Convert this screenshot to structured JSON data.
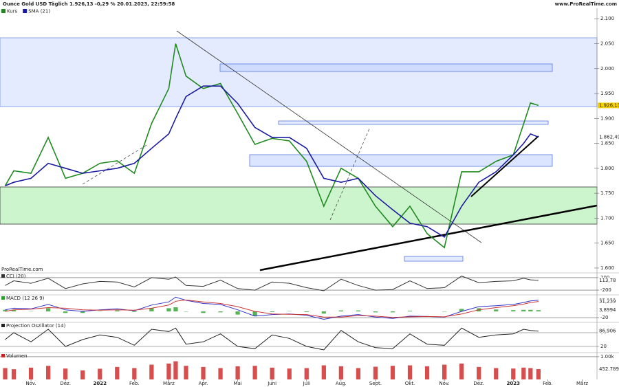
{
  "chart_data": [
    {
      "type": "line",
      "title": "Ounce Gold USD Täglich 1.926,13 -0,29 % 20.01.2023, 22:59:58",
      "source": "www.ProRealTime.com",
      "watermark": "ProRealTime.com",
      "x": [
        -0.75,
        -0.5,
        0,
        0.5,
        1,
        1.5,
        2,
        2.5,
        3,
        3.5,
        4,
        4.2,
        4.5,
        5,
        5.5,
        6,
        6.5,
        7,
        7.5,
        8,
        8.5,
        9,
        9.5,
        10,
        10.5,
        11,
        11.5,
        12,
        12.5,
        13,
        13.5,
        14,
        14.3,
        14.5,
        14.73
      ],
      "xlim": [
        -0.9,
        16.43
      ],
      "ylim": [
        1593,
        2121
      ],
      "yticks": [
        {
          "value": 2100,
          "label": "2.100"
        },
        {
          "value": 2050,
          "label": "2.050"
        },
        {
          "value": 2000,
          "label": "2.000"
        },
        {
          "value": 1950,
          "label": "1.950"
        },
        {
          "value": 1900,
          "label": "1.900"
        },
        {
          "value": 1850,
          "label": "1.850"
        },
        {
          "value": 1800,
          "label": "1.800"
        },
        {
          "value": 1750,
          "label": "1.750"
        },
        {
          "value": 1700,
          "label": "1.700"
        },
        {
          "value": 1650,
          "label": "1.650"
        },
        {
          "value": 1600,
          "label": "1.600"
        }
      ],
      "series": [
        {
          "name": "Kurs",
          "color": "#1f8a1f",
          "values": [
            1765,
            1795,
            1790,
            1862,
            1780,
            1790,
            1810,
            1815,
            1790,
            1890,
            1960,
            2050,
            1985,
            1960,
            1970,
            1910,
            1848,
            1860,
            1855,
            1814,
            1724,
            1800,
            1780,
            1724,
            1683,
            1724,
            1669,
            1641,
            1793,
            1793,
            1814,
            1827,
            1889,
            1931,
            1926.13
          ]
        },
        {
          "name": "SMA (21)",
          "color": "#1a1aa0",
          "values": [
            1765,
            1772,
            1780,
            1810,
            1800,
            1790,
            1795,
            1800,
            1810,
            1840,
            1869,
            1900,
            1944,
            1965,
            1965,
            1930,
            1882,
            1862,
            1862,
            1840,
            1780,
            1772,
            1780,
            1745,
            1717,
            1690,
            1683,
            1662,
            1724,
            1772,
            1793,
            1827,
            1850,
            1869,
            1862.49
          ]
        }
      ],
      "tags": [
        {
          "value": 1926.13,
          "label": "1.926,13",
          "color": "#f5d000"
        },
        {
          "value": 1862.49,
          "label": "1.862,49",
          "color": "#ffffff"
        }
      ]
    },
    {
      "type": "line",
      "title": "CCI (20)",
      "x": [
        -0.75,
        -0.5,
        0,
        0.5,
        1,
        1.5,
        2,
        2.5,
        3,
        3.5,
        4,
        4.2,
        4.5,
        5,
        5.5,
        6,
        6.5,
        7,
        7.5,
        8,
        8.5,
        9,
        9.5,
        10,
        10.5,
        11,
        11.5,
        12,
        12.5,
        13,
        13.5,
        14,
        14.3,
        14.5,
        14.73
      ],
      "xlim": [
        -0.9,
        16.43
      ],
      "ylim": [
        -330,
        330
      ],
      "yticks": [
        200,
        -200
      ],
      "series": [
        {
          "color": "#333333",
          "values": [
            -50,
            100,
            20,
            180,
            -150,
            0,
            80,
            60,
            -100,
            200,
            150,
            220,
            -50,
            -80,
            120,
            -150,
            -200,
            60,
            20,
            -120,
            -220,
            150,
            -50,
            -200,
            -180,
            100,
            -150,
            -120,
            250,
            40,
            80,
            100,
            180,
            130,
            113.78
          ]
        }
      ],
      "tags": [
        {
          "value": 113.78,
          "label": "113,78",
          "color": "#ffffff"
        }
      ]
    },
    {
      "type": "line",
      "title": "MACD (12 26 9)",
      "x": [
        -0.75,
        -0.5,
        0,
        0.5,
        1,
        1.5,
        2,
        2.5,
        3,
        3.5,
        4,
        4.2,
        4.5,
        5,
        5.5,
        6,
        6.5,
        7,
        7.5,
        8,
        8.5,
        9,
        9.5,
        10,
        10.5,
        11,
        11.5,
        12,
        12.5,
        13,
        13.5,
        14,
        14.3,
        14.5,
        14.73
      ],
      "xlim": [
        -0.9,
        16.43
      ],
      "ylim": [
        -26,
        50
      ],
      "yticks": [
        -20
      ],
      "series": [
        {
          "type": "bar",
          "color": "#2ca02c",
          "values": [
            5,
            5,
            1,
            10,
            -5,
            -5,
            1,
            3,
            -2,
            10,
            10,
            13,
            -1,
            -5,
            -3,
            -10,
            -15,
            -2,
            1,
            -2,
            -7,
            3,
            3,
            -3,
            -3,
            2,
            0,
            -1,
            8,
            10,
            6,
            4,
            5,
            5,
            3.8994
          ]
        },
        {
          "color": "#3333cc",
          "values": [
            5,
            10,
            8,
            22,
            5,
            0,
            5,
            8,
            2,
            20,
            30,
            45,
            35,
            25,
            22,
            5,
            -15,
            -10,
            -8,
            -12,
            -25,
            -15,
            -10,
            -18,
            -22,
            -15,
            -16,
            -18,
            0,
            15,
            18,
            22,
            28,
            33,
            35.139
          ]
        },
        {
          "color": "#cc3333",
          "values": [
            0,
            5,
            7,
            12,
            10,
            5,
            4,
            5,
            4,
            10,
            20,
            32,
            36,
            30,
            25,
            15,
            0,
            -8,
            -9,
            -10,
            -18,
            -18,
            -13,
            -15,
            -19,
            -17,
            -16,
            -17,
            -8,
            5,
            12,
            18,
            23,
            28,
            31.239
          ]
        }
      ],
      "tags": [
        {
          "value": 35.139,
          "label": "35,139",
          "color": "#ffffff"
        },
        {
          "value": 31.239,
          "label": "31,239",
          "color": "#ffffff"
        },
        {
          "value": 3.8994,
          "label": "3,8994",
          "color": "#ffffff"
        }
      ]
    },
    {
      "type": "line",
      "title": "Projection Oszillator (14)",
      "x": [
        -0.75,
        -0.5,
        0,
        0.5,
        1,
        1.5,
        2,
        2.5,
        3,
        3.5,
        4,
        4.2,
        4.5,
        5,
        5.5,
        6,
        6.5,
        7,
        7.5,
        8,
        8.5,
        9,
        9.5,
        10,
        10.5,
        11,
        11.5,
        12,
        12.5,
        13,
        13.5,
        14,
        14.3,
        14.5,
        14.73
      ],
      "xlim": [
        -0.9,
        16.43
      ],
      "ylim": [
        -4,
        122
      ],
      "yticks": [
        80,
        20
      ],
      "series": [
        {
          "color": "#222222",
          "values": [
            50,
            80,
            40,
            95,
            20,
            50,
            70,
            60,
            25,
            95,
            85,
            100,
            30,
            40,
            75,
            20,
            10,
            70,
            55,
            20,
            5,
            90,
            40,
            15,
            10,
            75,
            30,
            25,
            100,
            60,
            70,
            75,
            95,
            90,
            86.906
          ]
        }
      ],
      "tags": [
        {
          "value": 86.906,
          "label": "86,906",
          "color": "#ffffff"
        }
      ]
    },
    {
      "type": "bar",
      "title": "Volumen",
      "x": [
        -0.75,
        -0.5,
        0,
        0.5,
        1,
        1.5,
        2,
        2.5,
        3,
        3.5,
        4,
        4.2,
        4.5,
        5,
        5.5,
        6,
        6.5,
        7,
        7.5,
        8,
        8.5,
        9,
        9.5,
        10,
        10.5,
        11,
        11.5,
        12,
        12.5,
        13,
        13.5,
        14,
        14.3,
        14.5,
        14.73
      ],
      "xlim": [
        -0.9,
        16.43
      ],
      "ylim": [
        0,
        1150
      ],
      "yticks": [
        {
          "value": 1000,
          "label": "1.00k"
        }
      ],
      "xticks": [
        {
          "value": 0,
          "label": "Nov."
        },
        {
          "value": 1,
          "label": "Dez."
        },
        {
          "value": 2,
          "label": "2022"
        },
        {
          "value": 3,
          "label": "Feb."
        },
        {
          "value": 4,
          "label": "März"
        },
        {
          "value": 5,
          "label": "Apr."
        },
        {
          "value": 6,
          "label": "Mai"
        },
        {
          "value": 7,
          "label": "Juni"
        },
        {
          "value": 8,
          "label": "Juli"
        },
        {
          "value": 9,
          "label": "Aug."
        },
        {
          "value": 10,
          "label": "Sept."
        },
        {
          "value": 11,
          "label": "Okt."
        },
        {
          "value": 12,
          "label": "Nov."
        },
        {
          "value": 13,
          "label": "Dez."
        },
        {
          "value": 14,
          "label": "2023"
        },
        {
          "value": 15,
          "label": "Feb."
        },
        {
          "value": 16,
          "label": "März"
        }
      ],
      "series": [
        {
          "color": "#cc2222",
          "values": [
            500,
            450,
            520,
            600,
            480,
            400,
            470,
            550,
            500,
            650,
            700,
            800,
            600,
            550,
            500,
            580,
            600,
            520,
            480,
            500,
            620,
            580,
            500,
            560,
            600,
            620,
            580,
            650,
            700,
            550,
            500,
            480,
            520,
            500,
            452.789
          ]
        }
      ],
      "tags": [
        {
          "value": 452.789,
          "label": "452.789",
          "color": "#ffffff"
        }
      ]
    }
  ]
}
